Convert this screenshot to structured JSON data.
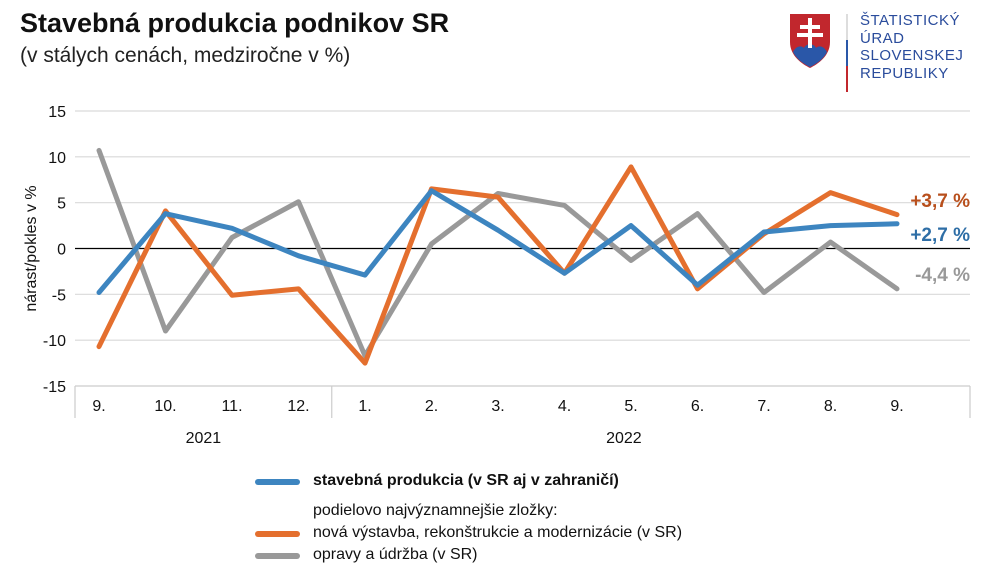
{
  "header": {
    "title": "Stavebná produkcia podnikov SR",
    "subtitle": "(v stálych cenách, medziročne v %)"
  },
  "logo": {
    "lines": [
      "ŠTATISTICKÝ",
      "ÚRAD",
      "SLOVENSKEJ",
      "REPUBLIKY"
    ]
  },
  "chart_data": {
    "type": "line",
    "title": "Stavebná produkcia podnikov SR",
    "ylabel": "nárast/pokles v %",
    "ylim": [
      -15,
      15
    ],
    "yticks": [
      15,
      10,
      5,
      0,
      -5,
      -10,
      -15
    ],
    "categories": [
      "9.",
      "10.",
      "11.",
      "12.",
      "1.",
      "2.",
      "3.",
      "4.",
      "5.",
      "6.",
      "7.",
      "8.",
      "9."
    ],
    "years": [
      {
        "label": "2021",
        "span": [
          0,
          3
        ]
      },
      {
        "label": "2022",
        "span": [
          4,
          12
        ]
      }
    ],
    "grid": true,
    "series": [
      {
        "name": "stavebná produkcia (v SR aj v zahraničí)",
        "color": "#3d85c0",
        "values": [
          -4.8,
          3.8,
          2.2,
          -0.8,
          -2.9,
          6.3,
          2.0,
          -2.7,
          2.5,
          -4.0,
          1.8,
          2.5,
          2.7
        ],
        "end_label": "+2,7 %",
        "label_color": "#2e6ea6"
      },
      {
        "name": "nová výstavba, rekonštrukcie a modernizácie (v SR)",
        "color": "#e46f2e",
        "values": [
          -10.7,
          4.1,
          -5.1,
          -4.4,
          -12.5,
          6.5,
          5.6,
          -2.7,
          8.9,
          -4.4,
          1.6,
          6.1,
          3.7
        ],
        "end_label": "+3,7 %",
        "label_color": "#b84f1c"
      },
      {
        "name": "opravy a údržba (v SR)",
        "color": "#999999",
        "values": [
          10.7,
          -9.0,
          1.2,
          5.1,
          -11.7,
          0.5,
          6.0,
          4.7,
          -1.3,
          3.8,
          -4.8,
          0.7,
          -4.4
        ],
        "end_label": "-4,4 %",
        "label_color": "#999999"
      }
    ],
    "legend_note": "podielovo najvýznamnejšie zložky:"
  }
}
